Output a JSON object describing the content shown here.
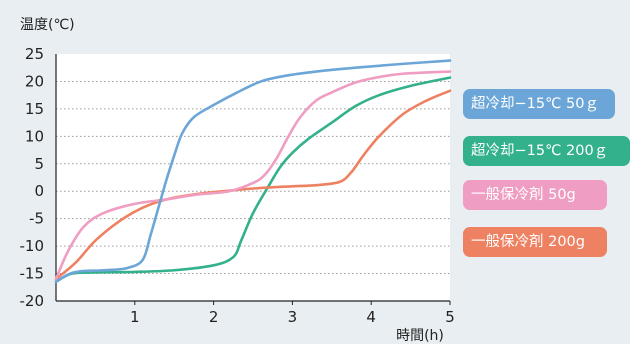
{
  "chart_data": {
    "type": "line",
    "ylabel": "温度(℃)",
    "xlabel": "時間(h)",
    "xlim": [
      0,
      5
    ],
    "ylim": [
      -20,
      25
    ],
    "x_ticks": [
      "1",
      "2",
      "3",
      "4",
      "5"
    ],
    "y_ticks": [
      "25",
      "20",
      "15",
      "10",
      "5",
      "0",
      "-5",
      "-10",
      "-15",
      "-20"
    ],
    "x_tick_values": [
      1,
      2,
      3,
      4,
      5
    ],
    "y_tick_values": [
      25,
      20,
      15,
      10,
      5,
      0,
      -5,
      -10,
      -15,
      -20
    ],
    "grid": "horizontal-dotted",
    "legend_position": "right",
    "series": [
      {
        "name": "超冷却−15℃ 50ｇ",
        "color": "#6ca6d8",
        "x": [
          0,
          0.15,
          0.3,
          0.6,
          0.9,
          1.1,
          1.2,
          1.3,
          1.4,
          1.5,
          1.6,
          1.75,
          2.0,
          2.3,
          2.6,
          2.9,
          3.3,
          3.8,
          4.4,
          5.0
        ],
        "y": [
          -16.5,
          -15.2,
          -14.6,
          -14.4,
          -14.0,
          -12.5,
          -8.0,
          -3.0,
          2.0,
          6.5,
          10.5,
          13.5,
          15.7,
          18.0,
          20.0,
          21.0,
          21.8,
          22.5,
          23.2,
          23.8
        ]
      },
      {
        "name": "超冷却−15℃ 200ｇ",
        "color": "#33b08c",
        "x": [
          0,
          0.2,
          0.5,
          1.0,
          1.5,
          2.0,
          2.25,
          2.35,
          2.5,
          2.7,
          2.85,
          3.0,
          3.2,
          3.5,
          3.8,
          4.1,
          4.5,
          5.0
        ],
        "y": [
          -16.5,
          -15.0,
          -14.8,
          -14.7,
          -14.4,
          -13.5,
          -12.0,
          -9.0,
          -4.0,
          1.0,
          4.5,
          7.0,
          9.5,
          12.5,
          15.5,
          17.5,
          19.2,
          20.7
        ]
      },
      {
        "name": "一般保冷剤 50g",
        "color": "#f09dc3",
        "x": [
          0,
          0.15,
          0.35,
          0.6,
          1.0,
          1.4,
          1.8,
          2.2,
          2.5,
          2.65,
          2.8,
          2.95,
          3.1,
          3.3,
          3.5,
          3.8,
          4.1,
          4.4,
          5.0
        ],
        "y": [
          -16.0,
          -11.0,
          -6.5,
          -4.0,
          -2.3,
          -1.5,
          -0.6,
          0.0,
          1.5,
          3.0,
          6.0,
          10.0,
          13.5,
          16.5,
          18.0,
          19.8,
          20.8,
          21.4,
          21.8
        ]
      },
      {
        "name": "一般保冷剤 200g",
        "color": "#ee8161",
        "x": [
          0,
          0.25,
          0.5,
          0.8,
          1.1,
          1.4,
          1.8,
          2.2,
          2.6,
          3.0,
          3.3,
          3.6,
          3.75,
          3.9,
          4.1,
          4.4,
          4.7,
          5.0
        ],
        "y": [
          -16.0,
          -13.0,
          -9.0,
          -5.5,
          -3.0,
          -1.5,
          -0.5,
          0.1,
          0.6,
          0.9,
          1.1,
          1.7,
          3.5,
          6.5,
          10.0,
          14.0,
          16.5,
          18.3
        ]
      }
    ]
  }
}
